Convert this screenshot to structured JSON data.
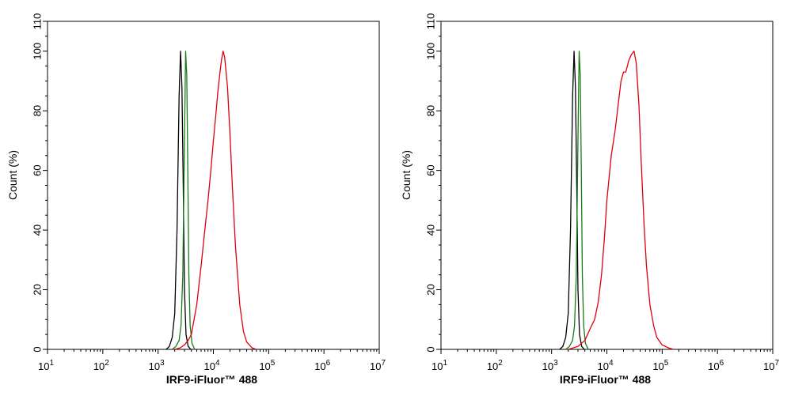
{
  "chart_data": [
    {
      "type": "line",
      "title": "",
      "xlabel": "IRF9-iFluor™ 488",
      "ylabel": "Count  (%)",
      "x_scale": "log",
      "xlim": [
        10,
        10000000
      ],
      "ylim": [
        0,
        110
      ],
      "x_ticks": [
        {
          "base": "10",
          "exp": "1"
        },
        {
          "base": "10",
          "exp": "2"
        },
        {
          "base": "10",
          "exp": "3"
        },
        {
          "base": "10",
          "exp": "4"
        },
        {
          "base": "10",
          "exp": "5"
        },
        {
          "base": "10",
          "exp": "6"
        },
        {
          "base": "10",
          "exp": "7"
        }
      ],
      "y_ticks": [
        0,
        20,
        40,
        60,
        80,
        100,
        110
      ],
      "grid": false,
      "series": [
        {
          "color": "#000000",
          "x": [
            1400,
            1600,
            1800,
            2000,
            2200,
            2400,
            2550,
            2700,
            2850,
            3000,
            3200,
            3500,
            3900
          ],
          "y": [
            0,
            1,
            4,
            12,
            40,
            85,
            100,
            88,
            55,
            20,
            5,
            1,
            0
          ]
        },
        {
          "color": "#1a7a1a",
          "x": [
            1800,
            2100,
            2400,
            2600,
            2800,
            3000,
            3150,
            3300,
            3450,
            3600,
            3800,
            4100,
            4600
          ],
          "y": [
            0,
            1,
            3,
            8,
            25,
            70,
            100,
            92,
            60,
            25,
            8,
            2,
            0
          ]
        },
        {
          "color": "#e0000d",
          "x": [
            2000,
            2500,
            3000,
            3500,
            4000,
            5000,
            6000,
            7000,
            8000,
            9000,
            10000,
            11000,
            12000,
            13000,
            14000,
            15000,
            16000,
            18000,
            20000,
            22000,
            25000,
            30000,
            35000,
            40000,
            50000,
            60000
          ],
          "y": [
            0,
            0.5,
            1.5,
            3,
            5,
            15,
            28,
            40,
            50,
            60,
            70,
            78,
            86,
            92,
            97,
            100,
            98,
            88,
            72,
            55,
            35,
            15,
            6,
            2.5,
            0.5,
            0
          ]
        }
      ]
    },
    {
      "type": "line",
      "title": "",
      "xlabel": "IRF9-iFluor™ 488",
      "ylabel": "Count  (%)",
      "x_scale": "log",
      "xlim": [
        10,
        10000000
      ],
      "ylim": [
        0,
        110
      ],
      "x_ticks": [
        {
          "base": "10",
          "exp": "1"
        },
        {
          "base": "10",
          "exp": "2"
        },
        {
          "base": "10",
          "exp": "3"
        },
        {
          "base": "10",
          "exp": "4"
        },
        {
          "base": "10",
          "exp": "5"
        },
        {
          "base": "10",
          "exp": "6"
        },
        {
          "base": "10",
          "exp": "7"
        }
      ],
      "y_ticks": [
        0,
        20,
        40,
        60,
        80,
        100,
        110
      ],
      "grid": false,
      "series": [
        {
          "color": "#000000",
          "x": [
            1400,
            1600,
            1800,
            2000,
            2200,
            2400,
            2550,
            2700,
            2850,
            3000,
            3200,
            3500,
            3900
          ],
          "y": [
            0,
            1,
            4,
            12,
            40,
            85,
            100,
            88,
            55,
            20,
            5,
            1,
            0
          ]
        },
        {
          "color": "#1a7a1a",
          "x": [
            1800,
            2100,
            2400,
            2600,
            2800,
            3000,
            3150,
            3300,
            3450,
            3600,
            3800,
            4100,
            4600
          ],
          "y": [
            0,
            1,
            3,
            8,
            25,
            70,
            100,
            92,
            60,
            25,
            8,
            2,
            0
          ]
        },
        {
          "color": "#e0000d",
          "x": [
            2000,
            3000,
            4000,
            5000,
            6000,
            7000,
            8000,
            9000,
            10000,
            12000,
            14000,
            16000,
            18000,
            20000,
            22000,
            25000,
            28000,
            31000,
            34000,
            38000,
            42000,
            47000,
            52000,
            60000,
            70000,
            80000,
            100000,
            130000,
            160000
          ],
          "y": [
            0,
            1,
            3,
            7,
            10,
            16,
            25,
            37,
            50,
            65,
            73,
            82,
            90,
            93,
            93,
            97,
            99,
            100,
            96,
            82,
            62,
            42,
            28,
            15,
            8,
            4,
            1.5,
            0.5,
            0
          ]
        }
      ]
    }
  ]
}
